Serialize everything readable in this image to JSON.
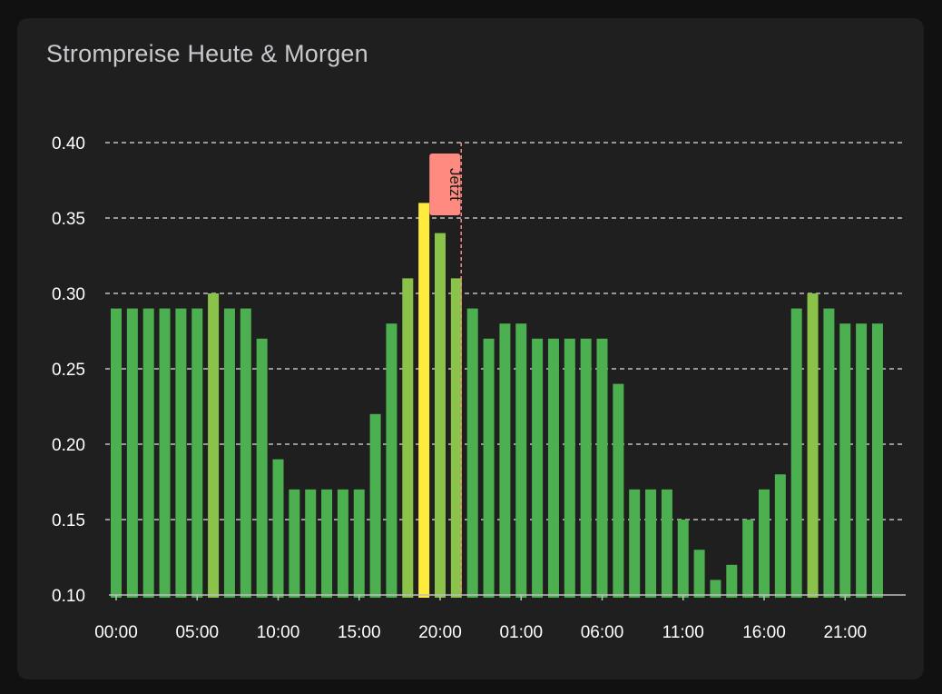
{
  "card": {
    "title": "Strompreise Heute & Morgen"
  },
  "chart_data": {
    "type": "bar",
    "title": "Strompreise Heute & Morgen",
    "xlabel": "",
    "ylabel": "",
    "ylim": [
      0.1,
      0.4
    ],
    "yticks": [
      "0.10",
      "0.15",
      "0.20",
      "0.25",
      "0.30",
      "0.35",
      "0.40"
    ],
    "grid": "horizontal dashed",
    "x_tick_labels": [
      {
        "index": 0,
        "label": "00:00"
      },
      {
        "index": 5,
        "label": "05:00"
      },
      {
        "index": 10,
        "label": "10:00"
      },
      {
        "index": 15,
        "label": "15:00"
      },
      {
        "index": 20,
        "label": "20:00"
      },
      {
        "index": 25,
        "label": "01:00"
      },
      {
        "index": 30,
        "label": "06:00"
      },
      {
        "index": 35,
        "label": "11:00"
      },
      {
        "index": 40,
        "label": "16:00"
      },
      {
        "index": 45,
        "label": "21:00"
      }
    ],
    "series": [
      {
        "values": [
          0.29,
          0.29,
          0.29,
          0.29,
          0.29,
          0.29,
          0.3,
          0.29,
          0.29,
          0.27,
          0.19,
          0.17,
          0.17,
          0.17,
          0.17,
          0.17,
          0.22,
          0.28,
          0.31,
          0.36,
          0.34,
          0.31,
          0.29,
          0.27,
          0.28,
          0.28,
          0.27,
          0.27,
          0.27,
          0.27,
          0.27,
          0.24,
          0.17,
          0.17,
          0.17,
          0.15,
          0.13,
          0.11,
          0.12,
          0.15,
          0.17,
          0.18,
          0.29,
          0.3,
          0.29,
          0.28,
          0.28,
          0.28
        ]
      }
    ],
    "colors": {
      "low": "#4caf50",
      "mid": "#8bc34a",
      "high": "#ffeb3b",
      "now_line": "#ff8a80",
      "grid": "#e0e0e0",
      "axis": "#bdbdbd"
    },
    "now_marker": {
      "label": "Jetzt",
      "position": 21.3
    }
  }
}
